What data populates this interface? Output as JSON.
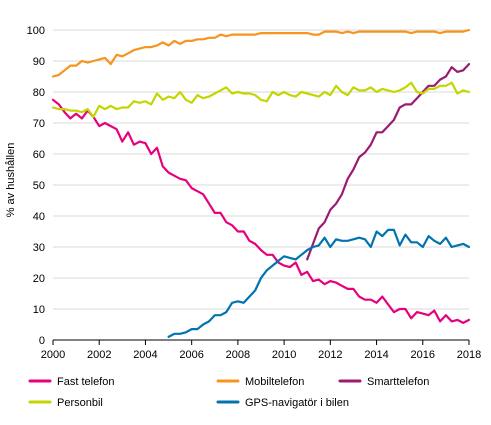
{
  "chart_data": {
    "type": "line",
    "title": "",
    "xlabel": "",
    "ylabel": "% av hushållen",
    "xlim": [
      2000,
      2018
    ],
    "ylim": [
      0,
      100
    ],
    "x_ticks": [
      "2000",
      "2002",
      "2004",
      "2006",
      "2008",
      "2010",
      "2012",
      "2014",
      "2016",
      "2018"
    ],
    "y_ticks": [
      "0",
      "10",
      "20",
      "30",
      "40",
      "50",
      "60",
      "70",
      "80",
      "90",
      "100"
    ],
    "grid": "horizontal",
    "legend_position": "bottom",
    "series": [
      {
        "name": "Fast telefon",
        "color": "#e6007e",
        "x": [
          2000.0,
          2000.25,
          2000.5,
          2000.75,
          2001.0,
          2001.25,
          2001.5,
          2001.75,
          2002.0,
          2002.25,
          2002.5,
          2002.75,
          2003.0,
          2003.25,
          2003.5,
          2003.75,
          2004.0,
          2004.25,
          2004.5,
          2004.75,
          2005.0,
          2005.25,
          2005.5,
          2005.75,
          2006.0,
          2006.25,
          2006.5,
          2006.75,
          2007.0,
          2007.25,
          2007.5,
          2007.75,
          2008.0,
          2008.25,
          2008.5,
          2008.75,
          2009.0,
          2009.25,
          2009.5,
          2009.75,
          2010.0,
          2010.25,
          2010.5,
          2010.75,
          2011.0,
          2011.25,
          2011.5,
          2011.75,
          2012.0,
          2012.25,
          2012.5,
          2012.75,
          2013.0,
          2013.25,
          2013.5,
          2013.75,
          2014.0,
          2014.25,
          2014.5,
          2014.75,
          2015.0,
          2015.25,
          2015.5,
          2015.75,
          2016.0,
          2016.25,
          2016.5,
          2016.75,
          2017.0,
          2017.25,
          2017.5,
          2017.75,
          2018.0
        ],
        "y": [
          77.5,
          76,
          73.5,
          71.5,
          73,
          71.5,
          74,
          72,
          69,
          70,
          69,
          68,
          64,
          67,
          63,
          64,
          63.5,
          60,
          62,
          56,
          54,
          53,
          52,
          51.5,
          49,
          48,
          47,
          44,
          41,
          41,
          38,
          37,
          35,
          35,
          32,
          31,
          29,
          27.5,
          27.5,
          25,
          24,
          23.5,
          25,
          21,
          22,
          19,
          19.5,
          18,
          19,
          18.5,
          17.5,
          16.5,
          16.5,
          14,
          13,
          13,
          12,
          14,
          11.5,
          9,
          10,
          10,
          7,
          9,
          8.5,
          8,
          9.5,
          6,
          8,
          6,
          6.5,
          5.5,
          6.5
        ]
      },
      {
        "name": "Mobiltelefon",
        "color": "#f7941d",
        "x": [
          2000.0,
          2000.25,
          2000.5,
          2000.75,
          2001.0,
          2001.25,
          2001.5,
          2001.75,
          2002.0,
          2002.25,
          2002.5,
          2002.75,
          2003.0,
          2003.25,
          2003.5,
          2003.75,
          2004.0,
          2004.25,
          2004.5,
          2004.75,
          2005.0,
          2005.25,
          2005.5,
          2005.75,
          2006.0,
          2006.25,
          2006.5,
          2006.75,
          2007.0,
          2007.25,
          2007.5,
          2007.75,
          2008.0,
          2008.25,
          2008.5,
          2008.75,
          2009.0,
          2009.25,
          2009.5,
          2009.75,
          2010.0,
          2010.25,
          2010.5,
          2010.75,
          2011.0,
          2011.25,
          2011.5,
          2011.75,
          2012.0,
          2012.25,
          2012.5,
          2012.75,
          2013.0,
          2013.25,
          2013.5,
          2013.75,
          2014.0,
          2014.25,
          2014.5,
          2014.75,
          2015.0,
          2015.25,
          2015.5,
          2015.75,
          2016.0,
          2016.25,
          2016.5,
          2016.75,
          2017.0,
          2017.25,
          2017.5,
          2017.75,
          2018.0
        ],
        "y": [
          85,
          85.5,
          87,
          88.5,
          88.5,
          90,
          89.5,
          90,
          90.5,
          91,
          89,
          92,
          91.5,
          92.5,
          93.5,
          94,
          94.5,
          94.5,
          95,
          96,
          95,
          96.5,
          95.5,
          96.5,
          96.5,
          97,
          97,
          97.5,
          97.5,
          98.5,
          98,
          98.5,
          98.5,
          98.5,
          98.5,
          98.5,
          99,
          99,
          99,
          99,
          99,
          99,
          99,
          99,
          99,
          98.5,
          98.5,
          99.5,
          99.5,
          99.5,
          99,
          99.5,
          99,
          99.5,
          99.5,
          99.5,
          99.5,
          99.5,
          99.5,
          99.5,
          99.5,
          99.5,
          99,
          99.5,
          99.5,
          99.5,
          99.5,
          99,
          99.5,
          99.5,
          99.5,
          99.5,
          100
        ]
      },
      {
        "name": "Smarttelefon",
        "color": "#9b1b72",
        "x": [
          2011.0,
          2011.25,
          2011.5,
          2011.75,
          2012.0,
          2012.25,
          2012.5,
          2012.75,
          2013.0,
          2013.25,
          2013.5,
          2013.75,
          2014.0,
          2014.25,
          2014.5,
          2014.75,
          2015.0,
          2015.25,
          2015.5,
          2015.75,
          2016.0,
          2016.25,
          2016.5,
          2016.75,
          2017.0,
          2017.25,
          2017.5,
          2017.75,
          2018.0
        ],
        "y": [
          26,
          31,
          36,
          38,
          42,
          44,
          47,
          52,
          55,
          59,
          60.5,
          63,
          67,
          67,
          69,
          71,
          75,
          76,
          76,
          78,
          80,
          82,
          82,
          84,
          85,
          88,
          86.5,
          87,
          89
        ]
      },
      {
        "name": "Personbil",
        "color": "#c4d600",
        "x": [
          2000.0,
          2000.25,
          2000.5,
          2000.75,
          2001.0,
          2001.25,
          2001.5,
          2001.75,
          2002.0,
          2002.25,
          2002.5,
          2002.75,
          2003.0,
          2003.25,
          2003.5,
          2003.75,
          2004.0,
          2004.25,
          2004.5,
          2004.75,
          2005.0,
          2005.25,
          2005.5,
          2005.75,
          2006.0,
          2006.25,
          2006.5,
          2006.75,
          2007.0,
          2007.25,
          2007.5,
          2007.75,
          2008.0,
          2008.25,
          2008.5,
          2008.75,
          2009.0,
          2009.25,
          2009.5,
          2009.75,
          2010.0,
          2010.25,
          2010.5,
          2010.75,
          2011.0,
          2011.25,
          2011.5,
          2011.75,
          2012.0,
          2012.25,
          2012.5,
          2012.75,
          2013.0,
          2013.25,
          2013.5,
          2013.75,
          2014.0,
          2014.25,
          2014.5,
          2014.75,
          2015.0,
          2015.25,
          2015.5,
          2015.75,
          2016.0,
          2016.25,
          2016.5,
          2016.75,
          2017.0,
          2017.25,
          2017.5,
          2017.75,
          2018.0
        ],
        "y": [
          75,
          74.5,
          74.5,
          74,
          74,
          73.5,
          74.5,
          72,
          75.5,
          74.5,
          75.5,
          74.5,
          75,
          75,
          77,
          76.5,
          77,
          76,
          79.5,
          77.5,
          78.5,
          78,
          80,
          77.5,
          76.5,
          79,
          78,
          78.5,
          79.5,
          80.5,
          81.5,
          79.5,
          80,
          79.5,
          79.5,
          79,
          77.5,
          77,
          80,
          79,
          80,
          79,
          78.5,
          80,
          79.5,
          79,
          78.5,
          80,
          79,
          82,
          80,
          79,
          81.5,
          80.5,
          80.5,
          81.5,
          80,
          81,
          80.5,
          80,
          80.5,
          81.5,
          83,
          80,
          79.5,
          81,
          81,
          82,
          82,
          83,
          79.5,
          80.5,
          80
        ]
      },
      {
        "name": "GPS-navigatör i bilen",
        "color": "#0073b0",
        "x": [
          2005.0,
          2005.25,
          2005.5,
          2005.75,
          2006.0,
          2006.25,
          2006.5,
          2006.75,
          2007.0,
          2007.25,
          2007.5,
          2007.75,
          2008.0,
          2008.25,
          2008.5,
          2008.75,
          2009.0,
          2009.25,
          2009.5,
          2009.75,
          2010.0,
          2010.25,
          2010.5,
          2010.75,
          2011.0,
          2011.25,
          2011.5,
          2011.75,
          2012.0,
          2012.25,
          2012.5,
          2012.75,
          2013.0,
          2013.25,
          2013.5,
          2013.75,
          2014.0,
          2014.25,
          2014.5,
          2014.75,
          2015.0,
          2015.25,
          2015.5,
          2015.75,
          2016.0,
          2016.25,
          2016.5,
          2016.75,
          2017.0,
          2017.25,
          2017.5,
          2017.75,
          2018.0
        ],
        "y": [
          1,
          2,
          2,
          2.5,
          3.5,
          3.5,
          5,
          6,
          8,
          8,
          9,
          12,
          12.5,
          12,
          14,
          16,
          20,
          22.5,
          24,
          25.5,
          27,
          26.5,
          26,
          27.5,
          29,
          30,
          30.5,
          33,
          30,
          32.5,
          32,
          32,
          32.5,
          33,
          32.5,
          30,
          35,
          33.5,
          35.5,
          35.5,
          30.5,
          34,
          31.5,
          31.5,
          30,
          33.5,
          32,
          31,
          33,
          30,
          30.5,
          31,
          30
        ]
      }
    ]
  }
}
